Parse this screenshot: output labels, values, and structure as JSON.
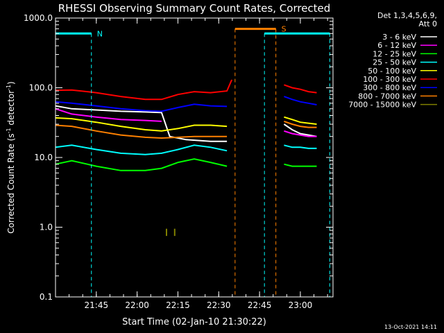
{
  "chart_data": {
    "type": "line",
    "title": "RHESSI Observing Summary Count Rates, Corrected",
    "xlabel": "Start Time (02-Jan-10 21:30:22)",
    "ylabel_main": "Corrected Count Rate (s",
    "ylabel_sup1": "-1",
    "ylabel_mid": " detector",
    "ylabel_sup2": "-1",
    "ylabel_end": ")",
    "yscale": "log",
    "ylim": [
      0.1,
      1000
    ],
    "xlim_minutes": [
      21.5,
      23.2
    ],
    "y_ticks": [
      {
        "v": 0.1,
        "label": "0.1"
      },
      {
        "v": 1,
        "label": "1.0"
      },
      {
        "v": 10,
        "label": "10.0"
      },
      {
        "v": 100,
        "label": "100.0"
      },
      {
        "v": 1000,
        "label": "1000.0"
      }
    ],
    "x_ticks": [
      {
        "v": 21.75,
        "label": "21:45"
      },
      {
        "v": 22.0,
        "label": "22:00"
      },
      {
        "v": 22.25,
        "label": "22:15"
      },
      {
        "v": 22.5,
        "label": "22:30"
      },
      {
        "v": 22.75,
        "label": "22:45"
      },
      {
        "v": 23.0,
        "label": "23:00"
      }
    ],
    "legend_header": [
      "Det 1,3,4,5,6,9,",
      "Att 0"
    ],
    "series": [
      {
        "name": "3 - 6 keV",
        "color": "#ffffff",
        "segments": [
          {
            "x": [
              21.5,
              21.6,
              21.75,
              21.9,
              22.05,
              22.15,
              22.2,
              22.3,
              22.45,
              22.55
            ],
            "y": [
              55,
              50,
              48,
              46,
              45,
              44,
              20,
              18,
              17,
              17
            ]
          },
          {
            "x": [
              22.9,
              22.95,
              23.0,
              23.05,
              23.1
            ],
            "y": [
              30,
              25,
              22,
              21,
              20
            ]
          }
        ]
      },
      {
        "name": "6 - 12 keV",
        "color": "#ff00ff",
        "segments": [
          {
            "x": [
              21.5,
              21.6,
              21.75,
              21.9,
              22.05,
              22.15
            ],
            "y": [
              50,
              42,
              38,
              35,
              34,
              33
            ]
          },
          {
            "x": [
              22.9,
              22.95,
              23.0,
              23.05,
              23.1
            ],
            "y": [
              24,
              22,
              21,
              20,
              20
            ]
          }
        ]
      },
      {
        "name": "12 - 25 keV",
        "color": "#00ff00",
        "segments": [
          {
            "x": [
              21.5,
              21.6,
              21.75,
              21.9,
              22.05,
              22.15,
              22.25,
              22.35,
              22.45,
              22.55
            ],
            "y": [
              8,
              9,
              7.5,
              6.5,
              6.5,
              7,
              8.5,
              9.5,
              8.5,
              7.5
            ]
          },
          {
            "x": [
              22.9,
              22.95,
              23.0,
              23.05,
              23.1
            ],
            "y": [
              8,
              7.5,
              7.5,
              7.5,
              7.5
            ]
          }
        ]
      },
      {
        "name": "25 - 50 keV",
        "color": "#00ffff",
        "segments": [
          {
            "x": [
              21.5,
              21.6,
              21.75,
              21.9,
              22.05,
              22.15,
              22.25,
              22.35,
              22.45,
              22.55
            ],
            "y": [
              14,
              15,
              13,
              11.5,
              11,
              11.5,
              13,
              15,
              14,
              12.5
            ]
          },
          {
            "x": [
              22.9,
              22.95,
              23.0,
              23.05,
              23.1
            ],
            "y": [
              15,
              14,
              14,
              13.5,
              13.5
            ]
          }
        ]
      },
      {
        "name": "50 - 100 keV",
        "color": "#ffff00",
        "segments": [
          {
            "x": [
              21.5,
              21.6,
              21.75,
              21.9,
              22.05,
              22.15,
              22.25,
              22.35,
              22.45,
              22.55
            ],
            "y": [
              37,
              36,
              32,
              28,
              25,
              24,
              26,
              29,
              29,
              28
            ]
          },
          {
            "x": [
              22.9,
              22.95,
              23.0,
              23.05,
              23.1
            ],
            "y": [
              38,
              35,
              32,
              31,
              30
            ]
          }
        ]
      },
      {
        "name": "100 - 300 keV",
        "color": "#ff0000",
        "segments": [
          {
            "x": [
              21.5,
              21.6,
              21.75,
              21.9,
              22.05,
              22.15,
              22.25,
              22.35,
              22.45,
              22.55,
              22.58
            ],
            "y": [
              92,
              93,
              85,
              75,
              68,
              68,
              80,
              88,
              85,
              90,
              130
            ]
          },
          {
            "x": [
              22.9,
              22.95,
              23.0,
              23.05,
              23.1
            ],
            "y": [
              110,
              100,
              95,
              88,
              85
            ]
          }
        ]
      },
      {
        "name": "300 - 800 keV",
        "color": "#0000ff",
        "segments": [
          {
            "x": [
              21.5,
              21.6,
              21.75,
              21.9,
              22.05,
              22.15,
              22.25,
              22.35,
              22.45,
              22.55
            ],
            "y": [
              63,
              60,
              55,
              50,
              47,
              46,
              52,
              58,
              55,
              54
            ]
          },
          {
            "x": [
              22.9,
              22.95,
              23.0,
              23.05,
              23.1
            ],
            "y": [
              75,
              68,
              63,
              60,
              57
            ]
          }
        ]
      },
      {
        "name": "800 - 7000 keV",
        "color": "#ff8000",
        "segments": [
          {
            "x": [
              21.5,
              21.6,
              21.75,
              21.9,
              22.05,
              22.15,
              22.25,
              22.35,
              22.45,
              22.55
            ],
            "y": [
              29,
              28,
              24,
              21,
              19.5,
              19,
              19.5,
              20,
              20,
              20
            ]
          },
          {
            "x": [
              22.9,
              22.95,
              23.0,
              23.05,
              23.1
            ],
            "y": [
              33,
              30,
              28,
              27,
              27
            ]
          }
        ]
      },
      {
        "name": "7000 - 15000 keV",
        "color": "#808000",
        "segments": [
          {
            "x": [
              22.18,
              22.18
            ],
            "y": [
              0.75,
              0.95
            ]
          },
          {
            "x": [
              22.23,
              22.23
            ],
            "y": [
              0.75,
              0.95
            ]
          }
        ]
      }
    ],
    "markers": [
      {
        "label": "N",
        "color": "#00ffff",
        "x_start": 21.5,
        "x_end": 21.72,
        "y": 600,
        "vlines": [
          21.5,
          21.72
        ]
      },
      {
        "label": "S",
        "color": "#ff8000",
        "x_start": 22.6,
        "x_end": 22.85,
        "y": 700,
        "vlines": [
          22.6,
          22.85
        ]
      },
      {
        "label": "",
        "color": "#00ffff",
        "x_start": 22.78,
        "x_end": 23.18,
        "y": 600,
        "vlines": [
          22.78,
          23.18
        ]
      }
    ],
    "footer": "13-Oct-2021 14:11"
  }
}
